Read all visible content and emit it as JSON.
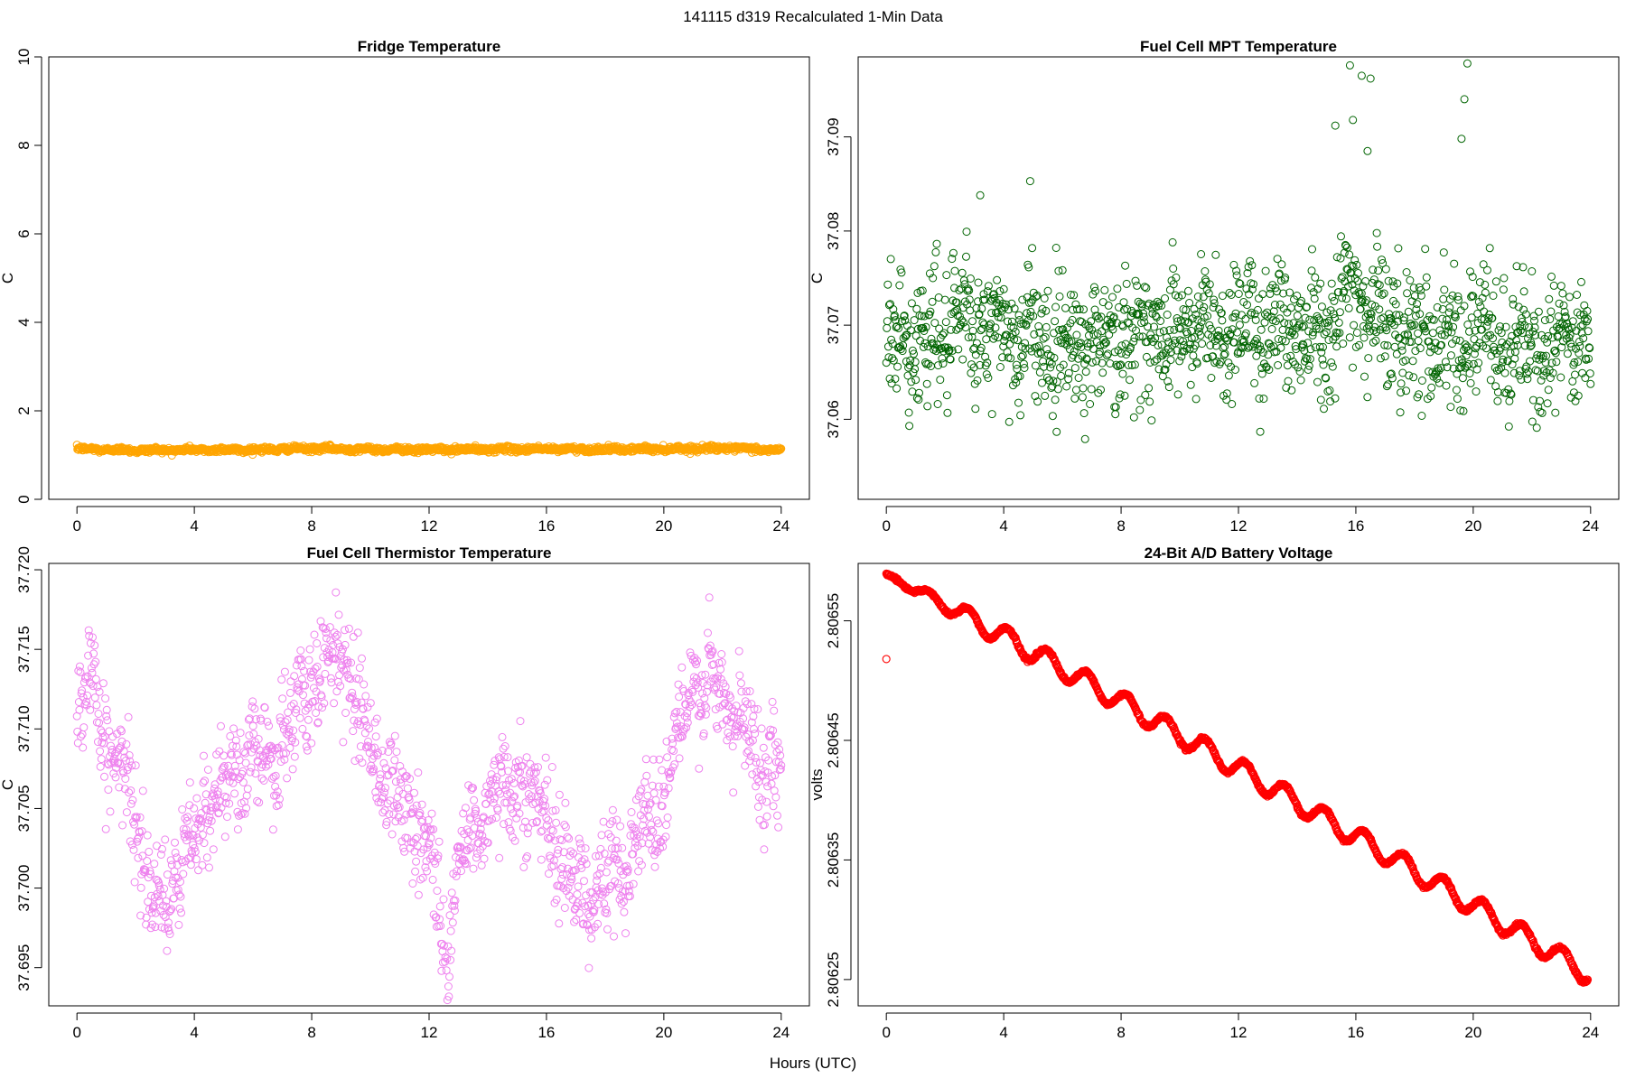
{
  "figure": {
    "title": "141115   d319   Recalculated 1-Min Data",
    "xlabel": "Hours (UTC)"
  },
  "chart_data": [
    {
      "id": "fridge",
      "type": "scatter",
      "title": "Fridge Temperature",
      "ylabel": "C",
      "xlabel": "",
      "color": "#ffa500",
      "xlim": [
        0,
        24
      ],
      "ylim": [
        0,
        10
      ],
      "xticks": [
        0,
        4,
        8,
        12,
        16,
        20,
        24
      ],
      "yticks": [
        0,
        2,
        4,
        6,
        8,
        10
      ],
      "ytick_labels": [
        "0",
        "2",
        "4",
        "6",
        "8",
        "10"
      ],
      "series": [
        {
          "name": "fridge",
          "x_start": 0,
          "x_end": 24,
          "n_points": 1440,
          "anchor_x": [
            0,
            2,
            4,
            6,
            8,
            10,
            12,
            14,
            16,
            18,
            20,
            22,
            24
          ],
          "anchor_y": [
            1.14,
            1.11,
            1.12,
            1.12,
            1.15,
            1.13,
            1.12,
            1.13,
            1.14,
            1.13,
            1.14,
            1.16,
            1.11
          ],
          "noise": 0.04
        }
      ]
    },
    {
      "id": "mpt",
      "type": "scatter",
      "title": "Fuel Cell MPT Temperature",
      "ylabel": "C",
      "xlabel": "",
      "color": "#006400",
      "xlim": [
        0,
        24
      ],
      "ylim": [
        37.0515,
        37.0985
      ],
      "xticks": [
        0,
        4,
        8,
        12,
        16,
        20,
        24
      ],
      "yticks": [
        37.06,
        37.07,
        37.08,
        37.09
      ],
      "ytick_labels": [
        "37.06",
        "37.07",
        "37.08",
        "37.09"
      ],
      "series": [
        {
          "name": "mpt",
          "x_start": 0,
          "x_end": 24,
          "n_points": 1440,
          "anchor_x": [
            0,
            3,
            6,
            9,
            12,
            15,
            16,
            17,
            19,
            20,
            22,
            24
          ],
          "anchor_y": [
            37.068,
            37.07,
            37.068,
            37.069,
            37.07,
            37.07,
            37.074,
            37.07,
            37.069,
            37.069,
            37.067,
            37.069
          ],
          "noise": 0.0045,
          "spikes": [
            {
              "x": 15.8,
              "y": 37.0976
            },
            {
              "x": 16.5,
              "y": 37.0962
            },
            {
              "x": 16.2,
              "y": 37.0965
            },
            {
              "x": 15.3,
              "y": 37.0912
            },
            {
              "x": 15.9,
              "y": 37.0918
            },
            {
              "x": 19.8,
              "y": 37.0978
            },
            {
              "x": 19.7,
              "y": 37.094
            },
            {
              "x": 19.6,
              "y": 37.0898
            },
            {
              "x": 16.4,
              "y": 37.0885
            },
            {
              "x": 3.2,
              "y": 37.0838
            },
            {
              "x": 4.9,
              "y": 37.0853
            }
          ]
        }
      ]
    },
    {
      "id": "thermistor",
      "type": "scatter",
      "title": "Fuel Cell Thermistor Temperature",
      "ylabel": "C",
      "xlabel": "",
      "color": "#ee82ee",
      "xlim": [
        0,
        24
      ],
      "ylim": [
        37.6926,
        37.7204
      ],
      "xticks": [
        0,
        4,
        8,
        12,
        16,
        20,
        24
      ],
      "yticks": [
        37.695,
        37.7,
        37.705,
        37.71,
        37.715,
        37.72
      ],
      "ytick_labels": [
        "37.695",
        "37.700",
        "37.705",
        "37.710",
        "37.715",
        "37.720"
      ],
      "series": [
        {
          "name": "thermistor",
          "x_start": 0,
          "x_end": 24,
          "n_points": 1440,
          "anchor_x": [
            0,
            0.5,
            1,
            2,
            2.5,
            3,
            4,
            5,
            6,
            7,
            8,
            9,
            10,
            11,
            12,
            12.6,
            13,
            14,
            15,
            16,
            17,
            18,
            19,
            20,
            21,
            22,
            23,
            24
          ],
          "anchor_y": [
            37.71,
            37.714,
            37.709,
            37.705,
            37.7,
            37.699,
            37.703,
            37.707,
            37.708,
            37.709,
            37.713,
            37.715,
            37.709,
            37.705,
            37.703,
            37.695,
            37.702,
            37.705,
            37.707,
            37.704,
            37.7,
            37.7,
            37.703,
            37.706,
            37.713,
            37.712,
            37.709,
            37.707
          ],
          "noise": 0.0022
        }
      ]
    },
    {
      "id": "battery",
      "type": "scatter",
      "title": "24-Bit A/D Battery Voltage",
      "ylabel": "volts",
      "xlabel": "",
      "color": "#ff0000",
      "xlim": [
        0,
        24
      ],
      "ylim": [
        2.806228,
        2.806598
      ],
      "xticks": [
        0,
        4,
        8,
        12,
        16,
        20,
        24
      ],
      "yticks": [
        2.80625,
        2.80635,
        2.80645,
        2.80655
      ],
      "ytick_labels": [
        "2.80625",
        "2.80635",
        "2.80645",
        "2.80655"
      ],
      "series": [
        {
          "name": "battery",
          "x_start": 0,
          "x_end": 23.9,
          "n_points": 1440,
          "start_value": 2.806588,
          "end_value": 2.806255,
          "ripple_amplitude": 8.5e-06,
          "ripple_period_hours": 1.35,
          "outliers": [
            {
              "x": 0.0,
              "y": 2.806518
            }
          ]
        }
      ]
    }
  ]
}
